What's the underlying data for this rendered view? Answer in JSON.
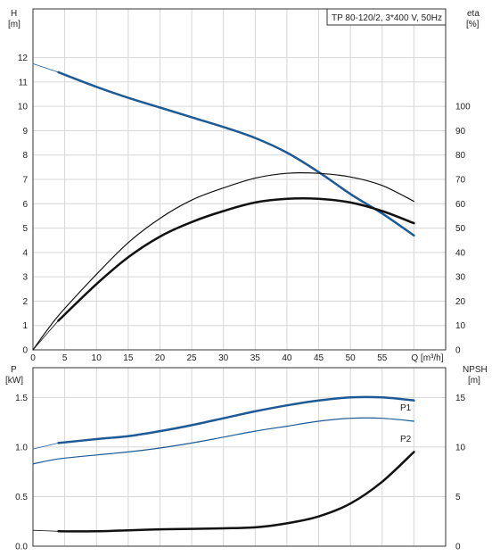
{
  "chart_data": [
    {
      "type": "line",
      "title": "TP 80-120/2, 3*400 V, 50Hz",
      "xlabel": "Q [m³/h]",
      "ylabel_left": "H",
      "ylabel_left_unit": "[m]",
      "ylabel_right": "eta",
      "ylabel_right_unit": "[%]",
      "xlim": [
        0,
        65
      ],
      "ylim_left": [
        0,
        14
      ],
      "ylim_right": [
        0,
        140
      ],
      "x_ticks": [
        0,
        5,
        10,
        15,
        20,
        25,
        30,
        35,
        40,
        45,
        50,
        55,
        60
      ],
      "x_tick_labels": [
        "0",
        "5",
        "10",
        "15",
        "20",
        "25",
        "30",
        "35",
        "40",
        "45",
        "50",
        "55",
        "Q [m³/h]"
      ],
      "y_left_ticks": [
        0,
        1,
        2,
        3,
        4,
        5,
        6,
        7,
        8,
        9,
        10,
        11,
        12
      ],
      "y_right_ticks": [
        0,
        10,
        20,
        30,
        40,
        50,
        60,
        70,
        80,
        90,
        100
      ],
      "grid": true,
      "series": [
        {
          "key": "H",
          "axis": "left",
          "color": "#1e5a96",
          "width": 2.5,
          "x": [
            4,
            10,
            15,
            20,
            25,
            30,
            35,
            40,
            45,
            50,
            55,
            60
          ],
          "y": [
            11.4,
            10.8,
            10.35,
            9.95,
            9.55,
            9.15,
            8.7,
            8.1,
            7.3,
            6.4,
            5.6,
            4.7
          ],
          "thin_x": [
            0,
            4
          ],
          "thin_y": [
            11.75,
            11.4
          ]
        },
        {
          "key": "eta_upper",
          "axis": "right",
          "color": "#111111",
          "width": 1.2,
          "x": [
            0,
            4,
            10,
            15,
            20,
            25,
            30,
            35,
            40,
            45,
            50,
            55,
            60
          ],
          "y": [
            0,
            14,
            31,
            44,
            54,
            61.5,
            66.5,
            70.5,
            72.5,
            72.5,
            71,
            67.5,
            61
          ]
        },
        {
          "key": "eta_lower",
          "axis": "right",
          "color": "#111111",
          "width": 2.5,
          "x": [
            4,
            10,
            15,
            20,
            25,
            30,
            35,
            40,
            45,
            50,
            55,
            60
          ],
          "y": [
            12,
            27,
            38,
            46.5,
            52.5,
            57,
            60.5,
            62,
            62,
            60.5,
            57,
            52
          ],
          "thin_x": [
            0,
            4
          ],
          "thin_y": [
            0,
            12
          ]
        }
      ]
    },
    {
      "type": "line",
      "xlim": [
        0,
        65
      ],
      "ylabel_left": "P",
      "ylabel_left_unit": "[kW]",
      "ylabel_right": "NPSH",
      "ylabel_right_unit": "[m]",
      "ylim_left": [
        0,
        1.8
      ],
      "ylim_right": [
        0,
        18
      ],
      "y_left_ticks": [
        0,
        0.5,
        1.0,
        1.5
      ],
      "y_left_tick_labels": [
        "0.0",
        "0.5",
        "1.0",
        "1.5"
      ],
      "y_right_ticks": [
        0,
        5,
        10,
        15
      ],
      "grid": true,
      "series": [
        {
          "name": "P1",
          "axis": "left",
          "color": "#1e5a96",
          "width": 2.5,
          "x": [
            4,
            10,
            15,
            20,
            25,
            30,
            35,
            40,
            45,
            50,
            55,
            60
          ],
          "y": [
            1.04,
            1.08,
            1.11,
            1.16,
            1.22,
            1.29,
            1.36,
            1.42,
            1.47,
            1.5,
            1.5,
            1.47
          ],
          "thin_x": [
            0,
            4
          ],
          "thin_y": [
            0.98,
            1.04
          ]
        },
        {
          "name": "P2",
          "axis": "left",
          "color": "#1e5a96",
          "width": 1.2,
          "x": [
            0,
            4,
            10,
            15,
            20,
            25,
            30,
            35,
            40,
            45,
            50,
            55,
            60
          ],
          "y": [
            0.83,
            0.88,
            0.92,
            0.95,
            0.99,
            1.04,
            1.1,
            1.16,
            1.21,
            1.26,
            1.29,
            1.29,
            1.26
          ]
        },
        {
          "key": "NPSH",
          "axis": "right",
          "color": "#111111",
          "width": 2.5,
          "x": [
            4,
            10,
            15,
            20,
            25,
            30,
            35,
            40,
            45,
            50,
            55,
            60
          ],
          "y": [
            1.5,
            1.5,
            1.6,
            1.7,
            1.75,
            1.8,
            1.9,
            2.3,
            3.0,
            4.3,
            6.5,
            9.5
          ],
          "thin_x": [
            0,
            4
          ],
          "thin_y": [
            1.6,
            1.5
          ]
        }
      ]
    }
  ]
}
